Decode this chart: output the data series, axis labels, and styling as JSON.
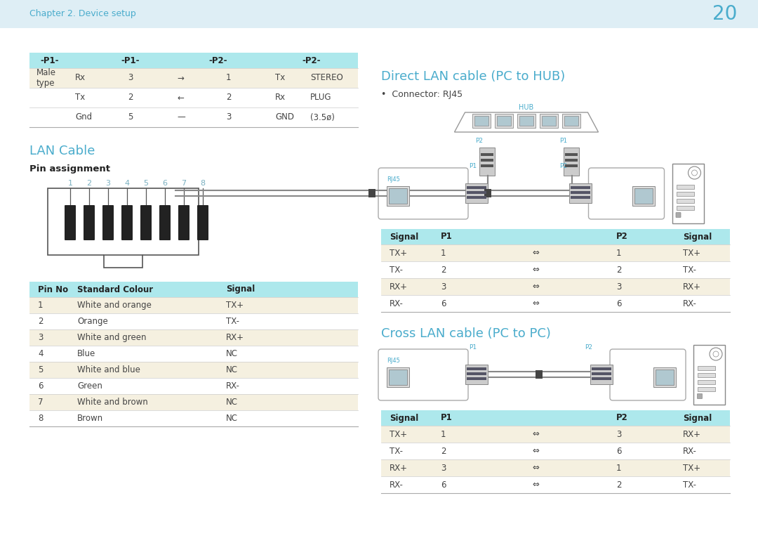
{
  "bg_color": "#deeef5",
  "white": "#ffffff",
  "light_cyan": "#ade8ec",
  "page_number": "20",
  "chapter_text": "Chapter 2. Device setup",
  "chapter_color": "#4aaccc",
  "page_num_color": "#4aaccc",
  "text_color": "#444444",
  "dark_text": "#222222",
  "gray_line": "#cccccc",
  "row_bg_alt": "#f5f0e0",
  "row_bg_white": "#ffffff",
  "top_table_headers": [
    "-P1-",
    "-P1-",
    "-P2-",
    "-P2-"
  ],
  "top_table_rows": [
    [
      "Male\ntype",
      "Rx",
      "3",
      "→",
      "1",
      "Tx",
      "STEREO"
    ],
    [
      "",
      "Tx",
      "2",
      "←",
      "2",
      "Rx",
      "PLUG"
    ],
    [
      "",
      "Gnd",
      "5",
      "—",
      "3",
      "GND",
      "(3.5ø)"
    ]
  ],
  "top_table_row_bg": [
    "#f5f0e0",
    "#ffffff",
    "#ffffff"
  ],
  "lan_cable_title": "LAN Cable",
  "pin_assignment_text": "Pin assignment",
  "pin_numbers": [
    "1",
    "2",
    "3",
    "4",
    "5",
    "6",
    "7",
    "8"
  ],
  "pin_table_headers": [
    "Pin No",
    "Standard Colour",
    "Signal"
  ],
  "pin_table_rows": [
    [
      "1",
      "White and orange",
      "TX+"
    ],
    [
      "2",
      "Orange",
      "TX-"
    ],
    [
      "3",
      "White and green",
      "RX+"
    ],
    [
      "4",
      "Blue",
      "NC"
    ],
    [
      "5",
      "White and blue",
      "NC"
    ],
    [
      "6",
      "Green",
      "RX-"
    ],
    [
      "7",
      "White and brown",
      "NC"
    ],
    [
      "8",
      "Brown",
      "NC"
    ]
  ],
  "pin_table_row_bg": [
    "#f5f0e0",
    "#ffffff",
    "#f5f0e0",
    "#ffffff",
    "#f5f0e0",
    "#ffffff",
    "#f5f0e0",
    "#ffffff"
  ],
  "direct_title": "Direct LAN cable (PC to HUB)",
  "direct_connector": "•  Connector: RJ45",
  "direct_table_headers": [
    "Signal",
    "P1",
    "",
    "P2",
    "Signal"
  ],
  "direct_table_rows": [
    [
      "TX+",
      "1",
      "⇔",
      "1",
      "TX+"
    ],
    [
      "TX-",
      "2",
      "⇔",
      "2",
      "TX-"
    ],
    [
      "RX+",
      "3",
      "⇔",
      "3",
      "RX+"
    ],
    [
      "RX-",
      "6",
      "⇔",
      "6",
      "RX-"
    ]
  ],
  "direct_table_row_bg": [
    "#f5f0e0",
    "#ffffff",
    "#f5f0e0",
    "#ffffff"
  ],
  "cross_title": "Cross LAN cable (PC to PC)",
  "cross_table_headers": [
    "Signal",
    "P1",
    "",
    "P2",
    "Signal"
  ],
  "cross_table_rows": [
    [
      "TX+",
      "1",
      "⇔",
      "3",
      "RX+"
    ],
    [
      "TX-",
      "2",
      "⇔",
      "6",
      "RX-"
    ],
    [
      "RX+",
      "3",
      "⇔",
      "1",
      "TX+"
    ],
    [
      "RX-",
      "6",
      "⇔",
      "2",
      "TX-"
    ]
  ],
  "cross_table_row_bg": [
    "#f5f0e0",
    "#ffffff",
    "#f5f0e0",
    "#ffffff"
  ]
}
